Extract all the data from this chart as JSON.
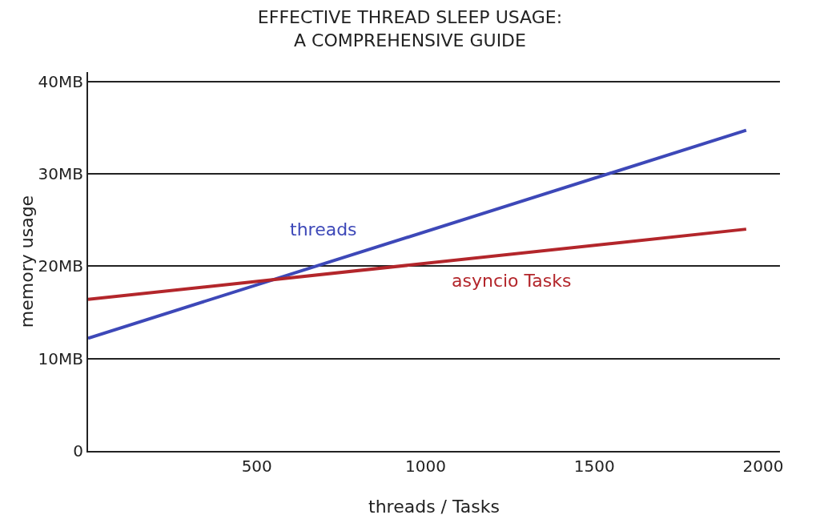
{
  "chart_data": {
    "type": "line",
    "title": "EFFECTIVE THREAD SLEEP USAGE:",
    "subtitle": "A COMPREHENSIVE GUIDE",
    "xlabel": "threads / Tasks",
    "ylabel": "memory usage",
    "x": [
      0,
      1950
    ],
    "series": [
      {
        "name": "threads",
        "color": "#3d48b8",
        "values": [
          12.2,
          34.7
        ]
      },
      {
        "name": "asyncio Tasks",
        "color": "#b3262b",
        "values": [
          16.4,
          24
        ]
      }
    ],
    "xlim": [
      0,
      2050
    ],
    "xticks": [
      500,
      1000,
      1500,
      2000
    ],
    "ylim": [
      0,
      41
    ],
    "yticks": [
      {
        "value": 0,
        "label": "0"
      },
      {
        "value": 10,
        "label": "10MB"
      },
      {
        "value": 20,
        "label": "20MB"
      },
      {
        "value": 30,
        "label": "30MB"
      },
      {
        "value": 40,
        "label": "40MB"
      }
    ],
    "grid": "y",
    "legend": false,
    "marker": "none",
    "line_style": "solid"
  }
}
